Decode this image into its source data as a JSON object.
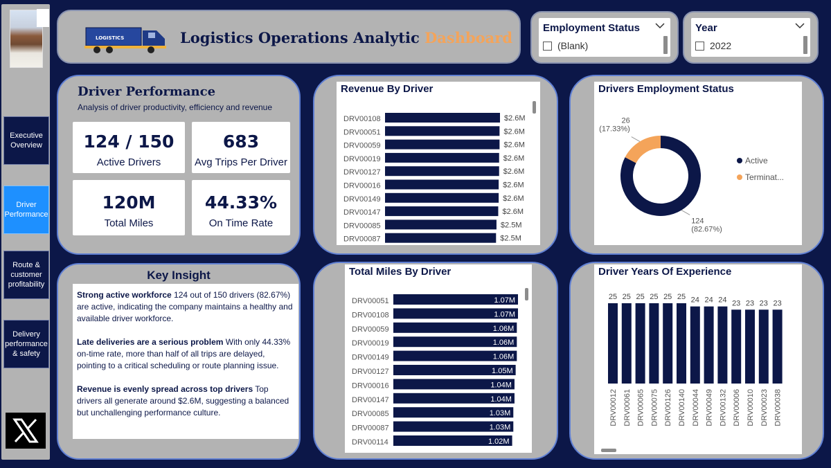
{
  "colors": {
    "navy": "#0c1748",
    "accent_orange": "#f4a45a",
    "active_nav": "#1e90ff",
    "card_grey": "#b3b3b3",
    "card_border": "#5f7fd3"
  },
  "sidebar": {
    "items": [
      {
        "label": "Executive Overview",
        "active": false
      },
      {
        "label": "Driver Performance",
        "active": true
      },
      {
        "label": "Route & customer profitability",
        "active": false
      },
      {
        "label": "Delivery performance & safety",
        "active": false
      }
    ],
    "social_icon": "x-logo-icon"
  },
  "header": {
    "title_main": "Logistics Operations Analytic",
    "title_accent": "Dashboard",
    "truck_label": "LOGISTICS"
  },
  "slicers": {
    "employment_status": {
      "title": "Employment Status",
      "option": "(Blank)"
    },
    "year": {
      "title": "Year",
      "option": "2022"
    }
  },
  "driver_performance": {
    "title": "Driver Performance",
    "subtitle": "Analysis of driver productivity, efficiency and revenue",
    "kpis": [
      {
        "value": "124 / 150",
        "label": "Active Drivers"
      },
      {
        "value": "683",
        "label": "Avg Trips Per Driver"
      },
      {
        "value": "120M",
        "label": "Total Miles"
      },
      {
        "value": "44.33%",
        "label": "On Time Rate"
      }
    ]
  },
  "key_insight": {
    "title": "Key Insight",
    "items": [
      {
        "bold": "Strong active workforce",
        "text": " 124 out of 150 drivers (82.67%) are active, indicating the company maintains a healthy and available driver workforce."
      },
      {
        "bold": " Late deliveries are a serious problem",
        "text": " With only 44.33% on-time rate, more than half of all trips are delayed, pointing to a critical scheduling or route planning issue."
      },
      {
        "bold": "Revenue is evenly spread across top drivers",
        "text": " Top drivers all generate around $2.6M, suggesting a balanced but unchallenging performance culture."
      }
    ]
  },
  "chart_data": [
    {
      "id": "revenue",
      "type": "bar",
      "orientation": "horizontal",
      "title": "Revenue By Driver",
      "categories": [
        "DRV00108",
        "DRV00051",
        "DRV00059",
        "DRV00019",
        "DRV00127",
        "DRV00016",
        "DRV00149",
        "DRV00147",
        "DRV00085",
        "DRV00087"
      ],
      "values": [
        2.62,
        2.61,
        2.61,
        2.6,
        2.6,
        2.59,
        2.59,
        2.58,
        2.54,
        2.53
      ],
      "labels": [
        "$2.6M",
        "$2.6M",
        "$2.6M",
        "$2.6M",
        "$2.6M",
        "$2.6M",
        "$2.6M",
        "$2.6M",
        "$2.5M",
        "$2.5M"
      ],
      "xlim": [
        0,
        2.62
      ]
    },
    {
      "id": "employment",
      "type": "pie",
      "donut": true,
      "title": "Drivers Employment Status",
      "categories": [
        "Active",
        "Terminat..."
      ],
      "values": [
        124,
        26
      ],
      "labels": [
        "124\n(82.67%)",
        "26\n(17.33%)"
      ],
      "colors": [
        "#0c1748",
        "#f4a45a"
      ],
      "legend": "right"
    },
    {
      "id": "miles",
      "type": "bar",
      "orientation": "horizontal",
      "title": "Total Miles By Driver",
      "categories": [
        "DRV00051",
        "DRV00108",
        "DRV00059",
        "DRV00019",
        "DRV00149",
        "DRV00127",
        "DRV00016",
        "DRV00147",
        "DRV00085",
        "DRV00087",
        "DRV00114"
      ],
      "values": [
        1.07,
        1.07,
        1.06,
        1.06,
        1.06,
        1.05,
        1.04,
        1.04,
        1.03,
        1.03,
        1.02
      ],
      "labels": [
        "1.07M",
        "1.07M",
        "1.06M",
        "1.06M",
        "1.06M",
        "1.05M",
        "1.04M",
        "1.04M",
        "1.03M",
        "1.03M",
        "1.02M"
      ],
      "xlim": [
        0,
        1.07
      ]
    },
    {
      "id": "experience",
      "type": "bar",
      "orientation": "vertical",
      "title": "Driver Years Of Experience",
      "categories": [
        "DRV00012",
        "DRV00061",
        "DRV00065",
        "DRV00075",
        "DRV00126",
        "DRV00140",
        "DRV00044",
        "DRV00049",
        "DRV00132",
        "DRV00006",
        "DRV00010",
        "DRV00023",
        "DRV00038"
      ],
      "values": [
        25,
        25,
        25,
        25,
        25,
        25,
        24,
        24,
        24,
        23,
        23,
        23,
        23
      ],
      "ylim": [
        0,
        25
      ]
    }
  ]
}
